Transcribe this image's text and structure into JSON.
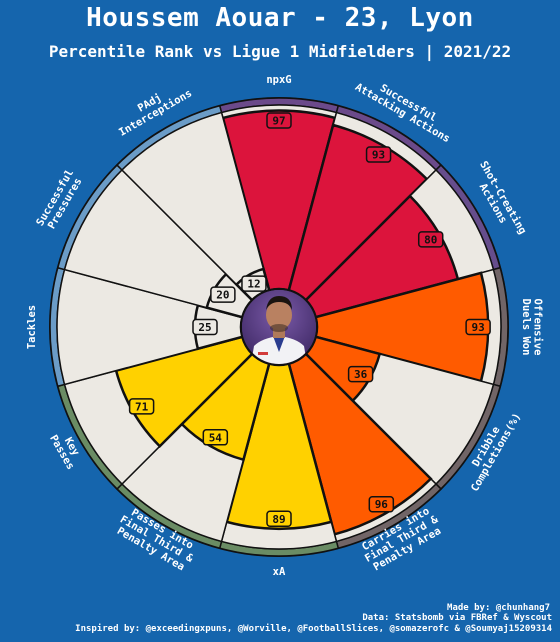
{
  "title": "Houssem Aouar - 23, Lyon",
  "subtitle": "Percentile Rank vs Ligue 1 Midfielders | 2021/22",
  "credits": {
    "made_by": "Made by: @chunhang7",
    "data": "Data: Statsbomb via FBRef & Wyscout",
    "inspired": "Inspired by: @exceedingxpuns, @Worville, @FootballSlices, @somazerofc & @Soumyaj15209314"
  },
  "colors": {
    "background": "#1565ad",
    "slice_bg": "#ece9e3",
    "edge": "#111111"
  },
  "chart_data": {
    "type": "pie",
    "subtype": "pizza",
    "rlim": [
      0,
      100
    ],
    "slices": [
      {
        "label": "npxG",
        "value": 97,
        "color": "#dc143c",
        "bg": "#6b4a8a"
      },
      {
        "label": "Successful\nAttacking Actions",
        "value": 93,
        "color": "#dc143c",
        "bg": "#6b4a8a"
      },
      {
        "label": "Shot-Creating\nActions",
        "value": 80,
        "color": "#dc143c",
        "bg": "#664d8c"
      },
      {
        "label": "Offensive\nDuels Won",
        "value": 93,
        "color": "#ff5b00",
        "bg": "#716567"
      },
      {
        "label": "Dribble\nCompletions(%)",
        "value": 36,
        "color": "#ff5b00",
        "bg": "#716567"
      },
      {
        "label": "Carries into\nFinal Third &\nPenalty Area",
        "value": 96,
        "color": "#ff5b00",
        "bg": "#716567"
      },
      {
        "label": "xA",
        "value": 89,
        "color": "#ffd100",
        "bg": "#6a8c64"
      },
      {
        "label": "Passes into\nFinal Third &\nPenalty Area",
        "value": 54,
        "color": "#ffd100",
        "bg": "#6a8c64"
      },
      {
        "label": "Key\nPasses",
        "value": 71,
        "color": "#ffd100",
        "bg": "#6a8c64"
      },
      {
        "label": "Tackles",
        "value": 25,
        "color": "#ece9e3",
        "bg": "#6b9cc7"
      },
      {
        "label": "Successful\nPressures",
        "value": 20,
        "color": "#ece9e3",
        "bg": "#6b9cc7"
      },
      {
        "label": "PAdj\nInterceptions",
        "value": 12,
        "color": "#ece9e3",
        "bg": "#6b9cc7"
      }
    ]
  },
  "center_image": "player-photo-icon"
}
